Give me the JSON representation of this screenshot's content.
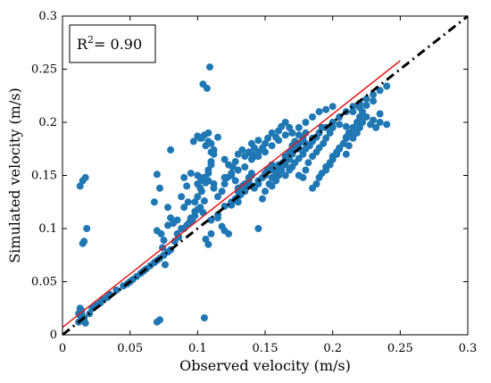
{
  "chart_data": {
    "type": "scatter",
    "xlabel": "Observed velocity (m/s)",
    "ylabel": "Simulated velocity (m/s)",
    "xlim": [
      0,
      0.3
    ],
    "ylim": [
      0,
      0.3
    ],
    "xticks": [
      0,
      0.05,
      0.1,
      0.15,
      0.2,
      0.25,
      0.3
    ],
    "yticks": [
      0,
      0.05,
      0.1,
      0.15,
      0.2,
      0.25,
      0.3
    ],
    "xtick_labels": [
      "0",
      "0.05",
      "0.1",
      "0.15",
      "0.2",
      "0.25",
      "0.3"
    ],
    "ytick_labels": [
      "0",
      "0.05",
      "0.1",
      "0.15",
      "0.2",
      "0.25",
      "0.3"
    ],
    "grid": false,
    "annotation": {
      "prefix": "R",
      "sup": "2",
      "suffix": "= 0.90"
    },
    "colors": {
      "points": "#1f77b4",
      "fit_line": "#e41a1c",
      "one_to_one_line": "#000000"
    },
    "fit_line": {
      "x": [
        0,
        0.25
      ],
      "y": [
        0.007,
        0.258
      ]
    },
    "one_to_one_line": {
      "x": [
        0,
        0.3
      ],
      "y": [
        0,
        0.3
      ]
    },
    "points": {
      "x": [
        0.012,
        0.013,
        0.014,
        0.016,
        0.013,
        0.015,
        0.017,
        0.018,
        0.02,
        0.022,
        0.025,
        0.028,
        0.03,
        0.033,
        0.015,
        0.016,
        0.017,
        0.014,
        0.013,
        0.014,
        0.016,
        0.012,
        0.035,
        0.04,
        0.045,
        0.048,
        0.05,
        0.052,
        0.055,
        0.058,
        0.06,
        0.062,
        0.065,
        0.068,
        0.07,
        0.072,
        0.075,
        0.078,
        0.08,
        0.07,
        0.072,
        0.068,
        0.07,
        0.073,
        0.075,
        0.078,
        0.08,
        0.082,
        0.085,
        0.07,
        0.072,
        0.074,
        0.076,
        0.078,
        0.08,
        0.083,
        0.086,
        0.088,
        0.09,
        0.092,
        0.094,
        0.096,
        0.098,
        0.1,
        0.102,
        0.104,
        0.106,
        0.108,
        0.11,
        0.085,
        0.088,
        0.09,
        0.092,
        0.095,
        0.098,
        0.1,
        0.103,
        0.105,
        0.108,
        0.11,
        0.112,
        0.09,
        0.093,
        0.095,
        0.098,
        0.1,
        0.102,
        0.105,
        0.108,
        0.11,
        0.097,
        0.1,
        0.103,
        0.106,
        0.108,
        0.1,
        0.102,
        0.104,
        0.106,
        0.108,
        0.11,
        0.112,
        0.115,
        0.104,
        0.107,
        0.109,
        0.112,
        0.105,
        0.11,
        0.115,
        0.12,
        0.125,
        0.13,
        0.135,
        0.14,
        0.145,
        0.15,
        0.155,
        0.16,
        0.165,
        0.17,
        0.175,
        0.18,
        0.185,
        0.19,
        0.195,
        0.2,
        0.205,
        0.21,
        0.215,
        0.22,
        0.225,
        0.23,
        0.235,
        0.24,
        0.112,
        0.115,
        0.118,
        0.12,
        0.122,
        0.125,
        0.128,
        0.13,
        0.115,
        0.118,
        0.12,
        0.123,
        0.125,
        0.128,
        0.13,
        0.133,
        0.135,
        0.138,
        0.14,
        0.12,
        0.123,
        0.126,
        0.128,
        0.13,
        0.133,
        0.135,
        0.138,
        0.14,
        0.142,
        0.145,
        0.13,
        0.132,
        0.135,
        0.138,
        0.14,
        0.142,
        0.145,
        0.148,
        0.15,
        0.152,
        0.155,
        0.14,
        0.142,
        0.145,
        0.148,
        0.15,
        0.152,
        0.155,
        0.158,
        0.16,
        0.162,
        0.165,
        0.168,
        0.17,
        0.145,
        0.148,
        0.15,
        0.153,
        0.155,
        0.158,
        0.16,
        0.163,
        0.165,
        0.168,
        0.17,
        0.172,
        0.175,
        0.155,
        0.158,
        0.16,
        0.162,
        0.165,
        0.168,
        0.17,
        0.172,
        0.175,
        0.178,
        0.18,
        0.165,
        0.168,
        0.17,
        0.172,
        0.175,
        0.178,
        0.18,
        0.183,
        0.185,
        0.188,
        0.19,
        0.192,
        0.175,
        0.178,
        0.18,
        0.182,
        0.185,
        0.188,
        0.19,
        0.193,
        0.195,
        0.198,
        0.2,
        0.185,
        0.188,
        0.19,
        0.192,
        0.195,
        0.198,
        0.2,
        0.203,
        0.205,
        0.208,
        0.21,
        0.212,
        0.195,
        0.198,
        0.2,
        0.203,
        0.205,
        0.208,
        0.21,
        0.213,
        0.215,
        0.218,
        0.22,
        0.222,
        0.21,
        0.212,
        0.215,
        0.218,
        0.22,
        0.222,
        0.225,
        0.228,
        0.23,
        0.232,
        0.235,
        0.24,
        0.12,
        0.125,
        0.13,
        0.135,
        0.14,
        0.145,
        0.15,
        0.155,
        0.16,
        0.165,
        0.17,
        0.175,
        0.18,
        0.185,
        0.19,
        0.195,
        0.2,
        0.205,
        0.21,
        0.215,
        0.22,
        0.225,
        0.23,
        0.235,
        0.102,
        0.105,
        0.108,
        0.11
      ],
      "y": [
        0.012,
        0.018,
        0.022,
        0.015,
        0.14,
        0.145,
        0.148,
        0.1,
        0.02,
        0.025,
        0.028,
        0.03,
        0.033,
        0.035,
        0.086,
        0.088,
        0.011,
        0.02,
        0.025,
        0.023,
        0.016,
        0.02,
        0.038,
        0.042,
        0.046,
        0.048,
        0.05,
        0.052,
        0.055,
        0.058,
        0.06,
        0.062,
        0.065,
        0.068,
        0.07,
        0.072,
        0.075,
        0.078,
        0.08,
        0.151,
        0.138,
        0.125,
        0.098,
        0.095,
        0.089,
        0.103,
        0.11,
        0.105,
        0.095,
        0.012,
        0.014,
        0.082,
        0.066,
        0.12,
        0.174,
        0.088,
        0.092,
        0.1,
        0.1,
        0.103,
        0.106,
        0.108,
        0.112,
        0.118,
        0.12,
        0.115,
        0.09,
        0.085,
        0.095,
        0.108,
        0.13,
        0.148,
        0.14,
        0.152,
        0.125,
        0.142,
        0.135,
        0.148,
        0.155,
        0.163,
        0.142,
        0.12,
        0.125,
        0.11,
        0.116,
        0.13,
        0.138,
        0.126,
        0.145,
        0.172,
        0.182,
        0.187,
        0.185,
        0.178,
        0.182,
        0.15,
        0.148,
        0.145,
        0.143,
        0.152,
        0.16,
        0.174,
        0.186,
        0.236,
        0.232,
        0.252,
        0.17,
        0.016,
        0.108,
        0.113,
        0.121,
        0.125,
        0.13,
        0.135,
        0.14,
        0.145,
        0.15,
        0.155,
        0.16,
        0.165,
        0.17,
        0.175,
        0.18,
        0.185,
        0.19,
        0.195,
        0.2,
        0.205,
        0.21,
        0.215,
        0.218,
        0.222,
        0.226,
        0.23,
        0.234,
        0.138,
        0.13,
        0.135,
        0.142,
        0.148,
        0.152,
        0.145,
        0.138,
        0.11,
        0.102,
        0.098,
        0.095,
        0.122,
        0.128,
        0.135,
        0.14,
        0.142,
        0.148,
        0.152,
        0.165,
        0.16,
        0.158,
        0.163,
        0.17,
        0.174,
        0.168,
        0.172,
        0.18,
        0.176,
        0.183,
        0.125,
        0.132,
        0.14,
        0.145,
        0.15,
        0.138,
        0.142,
        0.148,
        0.152,
        0.156,
        0.16,
        0.17,
        0.168,
        0.172,
        0.176,
        0.18,
        0.185,
        0.19,
        0.186,
        0.192,
        0.196,
        0.2,
        0.195,
        0.19,
        0.1,
        0.128,
        0.135,
        0.142,
        0.148,
        0.153,
        0.158,
        0.162,
        0.168,
        0.172,
        0.178,
        0.182,
        0.188,
        0.14,
        0.145,
        0.15,
        0.155,
        0.16,
        0.165,
        0.17,
        0.175,
        0.18,
        0.185,
        0.19,
        0.15,
        0.155,
        0.158,
        0.162,
        0.166,
        0.17,
        0.175,
        0.178,
        0.182,
        0.186,
        0.19,
        0.195,
        0.15,
        0.148,
        0.155,
        0.162,
        0.168,
        0.172,
        0.176,
        0.18,
        0.185,
        0.19,
        0.195,
        0.138,
        0.142,
        0.148,
        0.152,
        0.158,
        0.162,
        0.168,
        0.172,
        0.176,
        0.18,
        0.186,
        0.19,
        0.155,
        0.16,
        0.165,
        0.17,
        0.175,
        0.18,
        0.185,
        0.19,
        0.195,
        0.2,
        0.205,
        0.21,
        0.17,
        0.178,
        0.185,
        0.19,
        0.195,
        0.2,
        0.205,
        0.198,
        0.202,
        0.195,
        0.2,
        0.198,
        0.148,
        0.15,
        0.155,
        0.158,
        0.165,
        0.168,
        0.172,
        0.178,
        0.183,
        0.188,
        0.19,
        0.195,
        0.2,
        0.205,
        0.21,
        0.212,
        0.215,
        0.198,
        0.196,
        0.21,
        0.214,
        0.216,
        0.22,
        0.208,
        0.185,
        0.188,
        0.19,
        0.18
      ]
    }
  }
}
